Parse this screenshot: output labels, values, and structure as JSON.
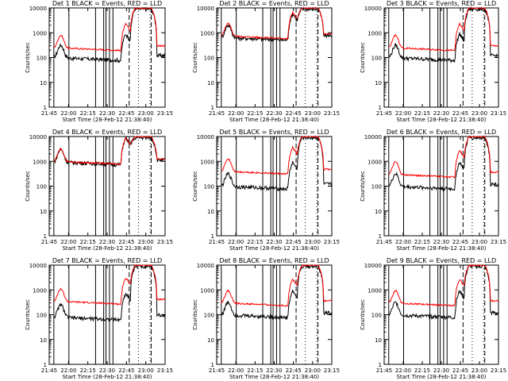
{
  "chart_data": [
    {
      "title": "Det 1",
      "legend": "BLACK = Events, RED = LLD",
      "xlabel": "Start Time (28-Feb-12 21:38:40)",
      "ylabel": "Counts/sec",
      "events_base": 100,
      "lld_base": 250,
      "events_peak": 9000,
      "lld_peak": 10000
    },
    {
      "title": "Det 2",
      "legend": "BLACK = Events, RED = LLD",
      "xlabel": "Start Time (28-Feb-12 21:38:40)",
      "ylabel": "Counts/sec",
      "events_base": 650,
      "lld_base": 750,
      "events_peak": 9000,
      "lld_peak": 10000
    },
    {
      "title": "Det 3",
      "legend": "BLACK = Events, RED = LLD",
      "xlabel": "Start Time (28-Feb-12 21:38:40)",
      "ylabel": "Counts/sec",
      "events_base": 100,
      "lld_base": 250,
      "events_peak": 9000,
      "lld_peak": 10000
    },
    {
      "title": "Det 4",
      "legend": "BLACK = Events, RED = LLD",
      "xlabel": "Start Time (28-Feb-12 21:38:40)",
      "ylabel": "Counts/sec",
      "events_base": 950,
      "lld_base": 1000,
      "events_peak": 9000,
      "lld_peak": 10000
    },
    {
      "title": "Det 5",
      "legend": "BLACK = Events, RED = LLD",
      "xlabel": "Start Time (28-Feb-12 21:38:40)",
      "ylabel": "Counts/sec",
      "events_base": 100,
      "lld_base": 400,
      "events_peak": 9000,
      "lld_peak": 10000
    },
    {
      "title": "Det 6",
      "legend": "BLACK = Events, RED = LLD",
      "xlabel": "Start Time (28-Feb-12 21:38:40)",
      "ylabel": "Counts/sec",
      "events_base": 100,
      "lld_base": 300,
      "events_peak": 9000,
      "lld_peak": 10000
    },
    {
      "title": "Det 7",
      "legend": "BLACK = Events, RED = LLD",
      "xlabel": "Start Time (28-Feb-12 21:38:40)",
      "ylabel": "Counts/sec",
      "events_base": 80,
      "lld_base": 350,
      "events_peak": 9000,
      "lld_peak": 10000
    },
    {
      "title": "Det 8",
      "legend": "BLACK = Events, RED = LLD",
      "xlabel": "Start Time (28-Feb-12 21:38:40)",
      "ylabel": "Counts/sec",
      "events_base": 100,
      "lld_base": 300,
      "events_peak": 9000,
      "lld_peak": 10000
    },
    {
      "title": "Det 9",
      "legend": "BLACK = Events, RED = LLD",
      "xlabel": "Start Time (28-Feb-12 21:38:40)",
      "ylabel": "Counts/sec",
      "events_base": 100,
      "lld_base": 300,
      "events_peak": 9000,
      "lld_peak": 10000
    }
  ],
  "x_ticks": [
    "21:45",
    "22:00",
    "22:15",
    "22:30",
    "22:45",
    "23:00",
    "23:15"
  ],
  "y_ticks": [
    "1",
    "10",
    "100",
    "1000",
    "10000"
  ],
  "colors": {
    "events": "#000000",
    "lld": "#ff0000",
    "axes": "#000000"
  }
}
